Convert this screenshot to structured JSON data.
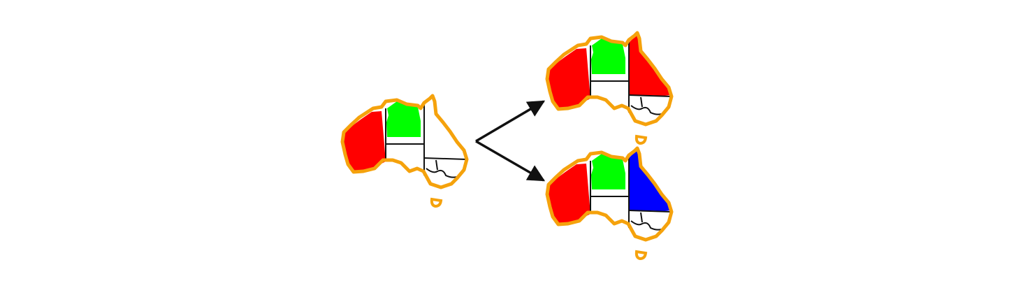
{
  "diagram": {
    "colors": {
      "outline": "#f5a20c",
      "border": "#111111",
      "arrow": "#111111",
      "background": "#ffffff",
      "red": "#ff0000",
      "green": "#00ff00",
      "blue": "#0000ff",
      "uncolored": "#ffffff"
    },
    "maps": [
      {
        "id": "initial-map",
        "regions": {
          "wa": "red",
          "nt": "green",
          "sa": "uncolored",
          "qld": "uncolored",
          "nsw": "uncolored",
          "vic": "uncolored",
          "tas": "uncolored"
        }
      },
      {
        "id": "upper-branch-map",
        "regions": {
          "wa": "red",
          "nt": "green",
          "sa": "uncolored",
          "qld": "red",
          "nsw": "uncolored",
          "vic": "uncolored",
          "tas": "uncolored"
        }
      },
      {
        "id": "lower-branch-map",
        "regions": {
          "wa": "red",
          "nt": "green",
          "sa": "uncolored",
          "qld": "blue",
          "nsw": "uncolored",
          "vic": "uncolored",
          "tas": "uncolored"
        }
      }
    ],
    "arrows": [
      {
        "from": "initial-map",
        "to": "upper-branch-map"
      },
      {
        "from": "initial-map",
        "to": "lower-branch-map"
      }
    ]
  }
}
